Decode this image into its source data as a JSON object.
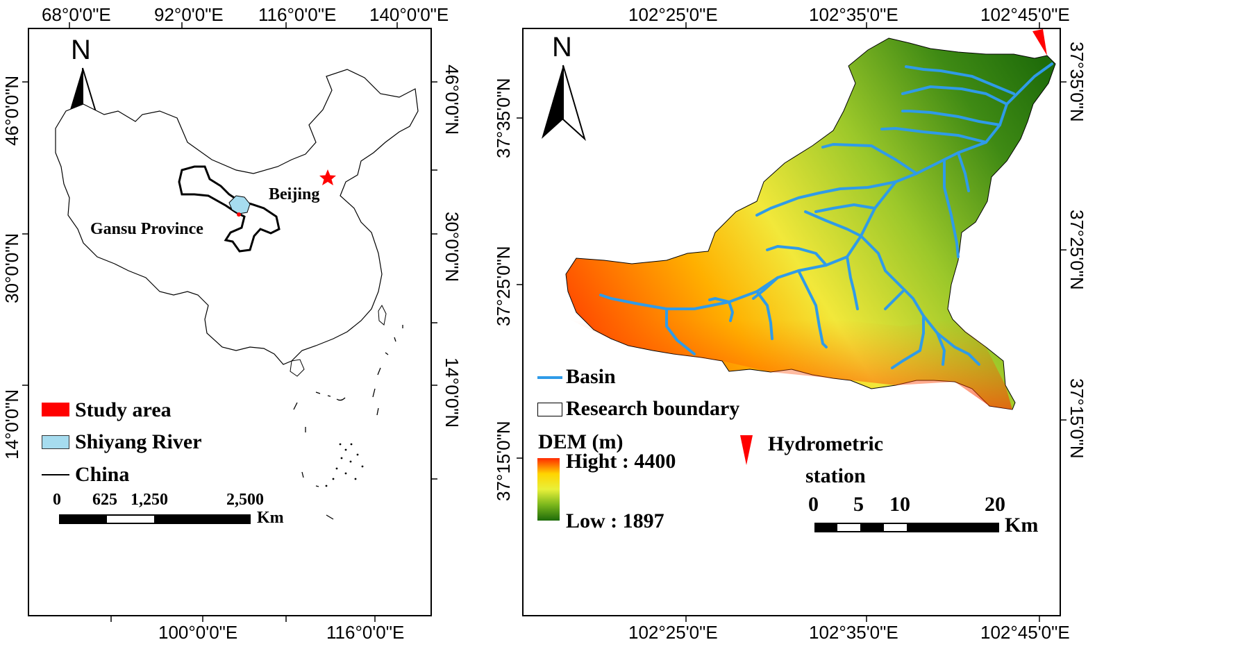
{
  "left_map": {
    "top_ticks": [
      "68°0'0\"E",
      "92°0'0\"E",
      "116°0'0\"E",
      "140°0'0\"E"
    ],
    "bottom_ticks": [
      "100°0'0\"E",
      "116°0'0\"E"
    ],
    "left_ticks": [
      "46°0'0\"N",
      "30°0'0\"N",
      "14°0'0\"N"
    ],
    "right_ticks": [
      "46°0'0\"N",
      "30°0'0\"N",
      "14°0'0\"N"
    ],
    "north": "N",
    "labels": {
      "gansu": "Gansu Province",
      "beijing": "Beijing"
    },
    "legend": [
      {
        "label": "Study area",
        "color": "#ff0000"
      },
      {
        "label": "Shiyang River",
        "color": "#a6dcef"
      },
      {
        "label": "China",
        "color": "#000000"
      }
    ],
    "scale": {
      "ticks": [
        "0",
        "625",
        "1,250",
        "2,500"
      ],
      "unit": "Km"
    }
  },
  "right_map": {
    "top_ticks": [
      "102°25'0\"E",
      "102°35'0\"E",
      "102°45'0\"E"
    ],
    "bottom_ticks": [
      "102°25'0\"E",
      "102°35'0\"E",
      "102°45'0\"E"
    ],
    "left_ticks": [
      "37°35'0\"N",
      "37°25'0\"N",
      "37°15'0\"N"
    ],
    "right_ticks": [
      "37°35'0\"N",
      "37°25'0\"N",
      "37°15'0\"N"
    ],
    "north": "N",
    "legend": {
      "basin": "Basin",
      "boundary": "Research boundary",
      "dem_title": "DEM (m)",
      "dem_high": "Hight : 4400",
      "dem_low": "Low : 1897",
      "station_line1": "Hydrometric",
      "station_line2": "station"
    },
    "dem": {
      "high": 4400,
      "low": 1897,
      "colors": [
        "#ff2a00",
        "#ffd400",
        "#e9f03a",
        "#7ab61c",
        "#1e6b0a"
      ]
    },
    "river_color": "#2f9be8",
    "station_color": "#ff0000",
    "scale": {
      "ticks": [
        "0",
        "5",
        "10",
        "20"
      ],
      "unit": "Km"
    }
  }
}
